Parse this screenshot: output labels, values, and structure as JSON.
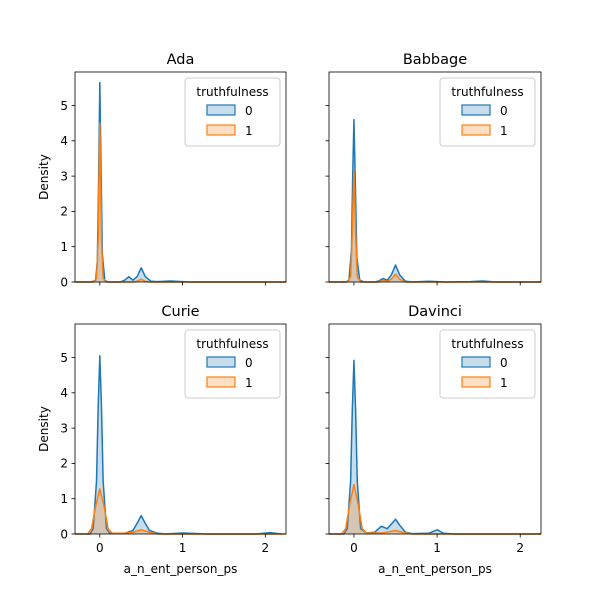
{
  "chart_data": [
    {
      "type": "area",
      "title": "Ada",
      "xlabel": "",
      "ylabel": "Density",
      "xlim": [
        -0.3,
        2.25
      ],
      "ylim": [
        0,
        5.95
      ],
      "xticks": [
        0,
        1,
        2
      ],
      "yticks": [
        0,
        1,
        2,
        3,
        4,
        5
      ],
      "show_xtick_labels": false,
      "show_ytick_labels": true,
      "legend": {
        "title": "truthfulness",
        "placement": "top-right"
      },
      "series": [
        {
          "name": "0",
          "color": "#1f77b4",
          "points": [
            [
              -0.3,
              0
            ],
            [
              -0.1,
              0
            ],
            [
              -0.05,
              0.05
            ],
            [
              -0.03,
              0.6
            ],
            [
              -0.015,
              2.8
            ],
            [
              0,
              5.65
            ],
            [
              0.015,
              3.2
            ],
            [
              0.03,
              0.8
            ],
            [
              0.06,
              0.05
            ],
            [
              0.1,
              0
            ],
            [
              0.25,
              0
            ],
            [
              0.3,
              0.05
            ],
            [
              0.35,
              0.15
            ],
            [
              0.4,
              0.05
            ],
            [
              0.45,
              0.15
            ],
            [
              0.5,
              0.4
            ],
            [
              0.55,
              0.15
            ],
            [
              0.62,
              0.02
            ],
            [
              0.7,
              0.01
            ],
            [
              0.85,
              0.03
            ],
            [
              1.0,
              0.01
            ],
            [
              1.1,
              0
            ],
            [
              2.25,
              0
            ]
          ]
        },
        {
          "name": "1",
          "color": "#ff7f0e",
          "points": [
            [
              -0.3,
              0
            ],
            [
              -0.08,
              0
            ],
            [
              -0.04,
              0.1
            ],
            [
              -0.02,
              1.2
            ],
            [
              0,
              4.5
            ],
            [
              0.02,
              1.2
            ],
            [
              0.04,
              0.1
            ],
            [
              0.08,
              0
            ],
            [
              0.4,
              0
            ],
            [
              0.45,
              0.02
            ],
            [
              0.5,
              0.08
            ],
            [
              0.55,
              0.02
            ],
            [
              0.6,
              0
            ],
            [
              2.25,
              0
            ]
          ]
        }
      ]
    },
    {
      "type": "area",
      "title": "Babbage",
      "xlabel": "",
      "ylabel": "",
      "xlim": [
        -0.3,
        2.25
      ],
      "ylim": [
        0,
        5.95
      ],
      "xticks": [
        0,
        1,
        2
      ],
      "yticks": [
        0,
        1,
        2,
        3,
        4,
        5
      ],
      "show_xtick_labels": false,
      "show_ytick_labels": false,
      "legend": {
        "title": "truthfulness",
        "placement": "top-right"
      },
      "series": [
        {
          "name": "0",
          "color": "#1f77b4",
          "points": [
            [
              -0.3,
              0
            ],
            [
              -0.1,
              0
            ],
            [
              -0.06,
              0.05
            ],
            [
              -0.03,
              0.9
            ],
            [
              -0.015,
              3.0
            ],
            [
              0,
              4.6
            ],
            [
              0.015,
              3.0
            ],
            [
              0.035,
              0.7
            ],
            [
              0.07,
              0.05
            ],
            [
              0.12,
              0
            ],
            [
              0.25,
              0
            ],
            [
              0.3,
              0.03
            ],
            [
              0.35,
              0.1
            ],
            [
              0.4,
              0.05
            ],
            [
              0.45,
              0.2
            ],
            [
              0.5,
              0.48
            ],
            [
              0.55,
              0.2
            ],
            [
              0.62,
              0.02
            ],
            [
              0.7,
              0
            ],
            [
              0.9,
              0.02
            ],
            [
              1.0,
              0.01
            ],
            [
              1.1,
              0
            ],
            [
              1.4,
              0.01
            ],
            [
              1.55,
              0.03
            ],
            [
              1.7,
              0
            ],
            [
              2.25,
              0
            ]
          ]
        },
        {
          "name": "1",
          "color": "#ff7f0e",
          "points": [
            [
              -0.3,
              0
            ],
            [
              -0.08,
              0
            ],
            [
              -0.04,
              0.15
            ],
            [
              -0.02,
              1.4
            ],
            [
              0,
              3.15
            ],
            [
              0.02,
              1.4
            ],
            [
              0.04,
              0.15
            ],
            [
              0.08,
              0
            ],
            [
              0.3,
              0
            ],
            [
              0.35,
              0.05
            ],
            [
              0.4,
              0.02
            ],
            [
              0.45,
              0.08
            ],
            [
              0.5,
              0.22
            ],
            [
              0.55,
              0.08
            ],
            [
              0.62,
              0
            ],
            [
              2.25,
              0
            ]
          ]
        }
      ]
    },
    {
      "type": "area",
      "title": "Curie",
      "xlabel": "a_n_ent_person_ps",
      "ylabel": "Density",
      "xlim": [
        -0.3,
        2.25
      ],
      "ylim": [
        0,
        5.95
      ],
      "xticks": [
        0,
        1,
        2
      ],
      "yticks": [
        0,
        1,
        2,
        3,
        4,
        5
      ],
      "show_xtick_labels": true,
      "show_ytick_labels": true,
      "legend": {
        "title": "truthfulness",
        "placement": "top-right"
      },
      "series": [
        {
          "name": "0",
          "color": "#1f77b4",
          "points": [
            [
              -0.3,
              0
            ],
            [
              -0.12,
              0
            ],
            [
              -0.08,
              0.15
            ],
            [
              -0.04,
              1.5
            ],
            [
              -0.02,
              3.6
            ],
            [
              0,
              5.05
            ],
            [
              0.02,
              3.6
            ],
            [
              0.04,
              1.5
            ],
            [
              0.08,
              0.15
            ],
            [
              0.12,
              0.02
            ],
            [
              0.3,
              0.02
            ],
            [
              0.4,
              0.1
            ],
            [
              0.45,
              0.3
            ],
            [
              0.5,
              0.52
            ],
            [
              0.55,
              0.3
            ],
            [
              0.6,
              0.1
            ],
            [
              0.7,
              0.02
            ],
            [
              0.8,
              0
            ],
            [
              1.0,
              0.03
            ],
            [
              1.3,
              0
            ],
            [
              1.9,
              0
            ],
            [
              2.05,
              0.04
            ],
            [
              2.2,
              0
            ]
          ]
        },
        {
          "name": "1",
          "color": "#ff7f0e",
          "points": [
            [
              -0.3,
              0
            ],
            [
              -0.15,
              0
            ],
            [
              -0.1,
              0.15
            ],
            [
              -0.05,
              0.8
            ],
            [
              0,
              1.28
            ],
            [
              0.05,
              0.8
            ],
            [
              0.1,
              0.15
            ],
            [
              0.15,
              0.02
            ],
            [
              0.3,
              0.02
            ],
            [
              0.4,
              0.05
            ],
            [
              0.5,
              0.12
            ],
            [
              0.6,
              0.05
            ],
            [
              0.7,
              0
            ],
            [
              2.25,
              0
            ]
          ]
        }
      ]
    },
    {
      "type": "area",
      "title": "Davinci",
      "xlabel": "a_n_ent_person_ps",
      "ylabel": "",
      "xlim": [
        -0.3,
        2.25
      ],
      "ylim": [
        0,
        5.95
      ],
      "xticks": [
        0,
        1,
        2
      ],
      "yticks": [
        0,
        1,
        2,
        3,
        4,
        5
      ],
      "show_xtick_labels": true,
      "show_ytick_labels": false,
      "legend": {
        "title": "truthfulness",
        "placement": "top-right"
      },
      "series": [
        {
          "name": "0",
          "color": "#1f77b4",
          "points": [
            [
              -0.3,
              0
            ],
            [
              -0.12,
              0
            ],
            [
              -0.08,
              0.15
            ],
            [
              -0.04,
              1.5
            ],
            [
              -0.02,
              3.5
            ],
            [
              0,
              4.92
            ],
            [
              0.02,
              3.5
            ],
            [
              0.04,
              1.5
            ],
            [
              0.08,
              0.15
            ],
            [
              0.15,
              0.03
            ],
            [
              0.25,
              0.05
            ],
            [
              0.33,
              0.22
            ],
            [
              0.4,
              0.15
            ],
            [
              0.45,
              0.28
            ],
            [
              0.5,
              0.42
            ],
            [
              0.55,
              0.25
            ],
            [
              0.62,
              0.05
            ],
            [
              0.7,
              0.01
            ],
            [
              0.9,
              0.02
            ],
            [
              1.0,
              0.12
            ],
            [
              1.08,
              0.02
            ],
            [
              1.2,
              0
            ],
            [
              2.25,
              0
            ]
          ]
        },
        {
          "name": "1",
          "color": "#ff7f0e",
          "points": [
            [
              -0.3,
              0
            ],
            [
              -0.15,
              0
            ],
            [
              -0.1,
              0.15
            ],
            [
              -0.05,
              0.85
            ],
            [
              0,
              1.4
            ],
            [
              0.05,
              0.85
            ],
            [
              0.1,
              0.15
            ],
            [
              0.15,
              0.03
            ],
            [
              0.35,
              0.03
            ],
            [
              0.45,
              0.08
            ],
            [
              0.5,
              0.1
            ],
            [
              0.6,
              0.04
            ],
            [
              0.7,
              0
            ],
            [
              2.25,
              0
            ]
          ]
        }
      ]
    }
  ]
}
